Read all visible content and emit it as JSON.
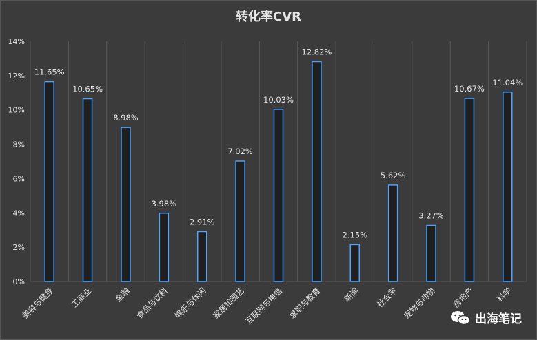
{
  "chart_data": {
    "type": "bar",
    "title": "转化率CVR",
    "categories": [
      "美容与健身",
      "工商业",
      "金融",
      "食品与饮料",
      "娱乐与休闲",
      "家居和园艺",
      "互联网与电信",
      "求职与教育",
      "新闻",
      "社会学",
      "宠物与动物",
      "房地产",
      "科学"
    ],
    "values": [
      11.65,
      10.65,
      8.98,
      3.98,
      2.91,
      7.02,
      10.03,
      12.82,
      2.15,
      5.62,
      3.27,
      10.67,
      11.04
    ],
    "data_labels": [
      "11.65%",
      "10.65%",
      "8.98%",
      "3.98%",
      "2.91%",
      "7.02%",
      "10.03%",
      "12.82%",
      "2.15%",
      "5.62%",
      "3.27%",
      "10.67%",
      "11.04%"
    ],
    "ylim": [
      0,
      14
    ],
    "yticks": [
      0,
      2,
      4,
      6,
      8,
      10,
      12,
      14
    ],
    "ytick_labels": [
      "0%",
      "2%",
      "4%",
      "6%",
      "8%",
      "10%",
      "12%",
      "14%"
    ],
    "grid": "vertical",
    "bar_fill": "#1f1f1f",
    "bar_stroke": "#4da3ff",
    "text_color": "#e6e6e6",
    "grid_color": "#5a5a5a"
  },
  "watermark": {
    "text": "出海笔记",
    "icon": "wechat-icon"
  }
}
